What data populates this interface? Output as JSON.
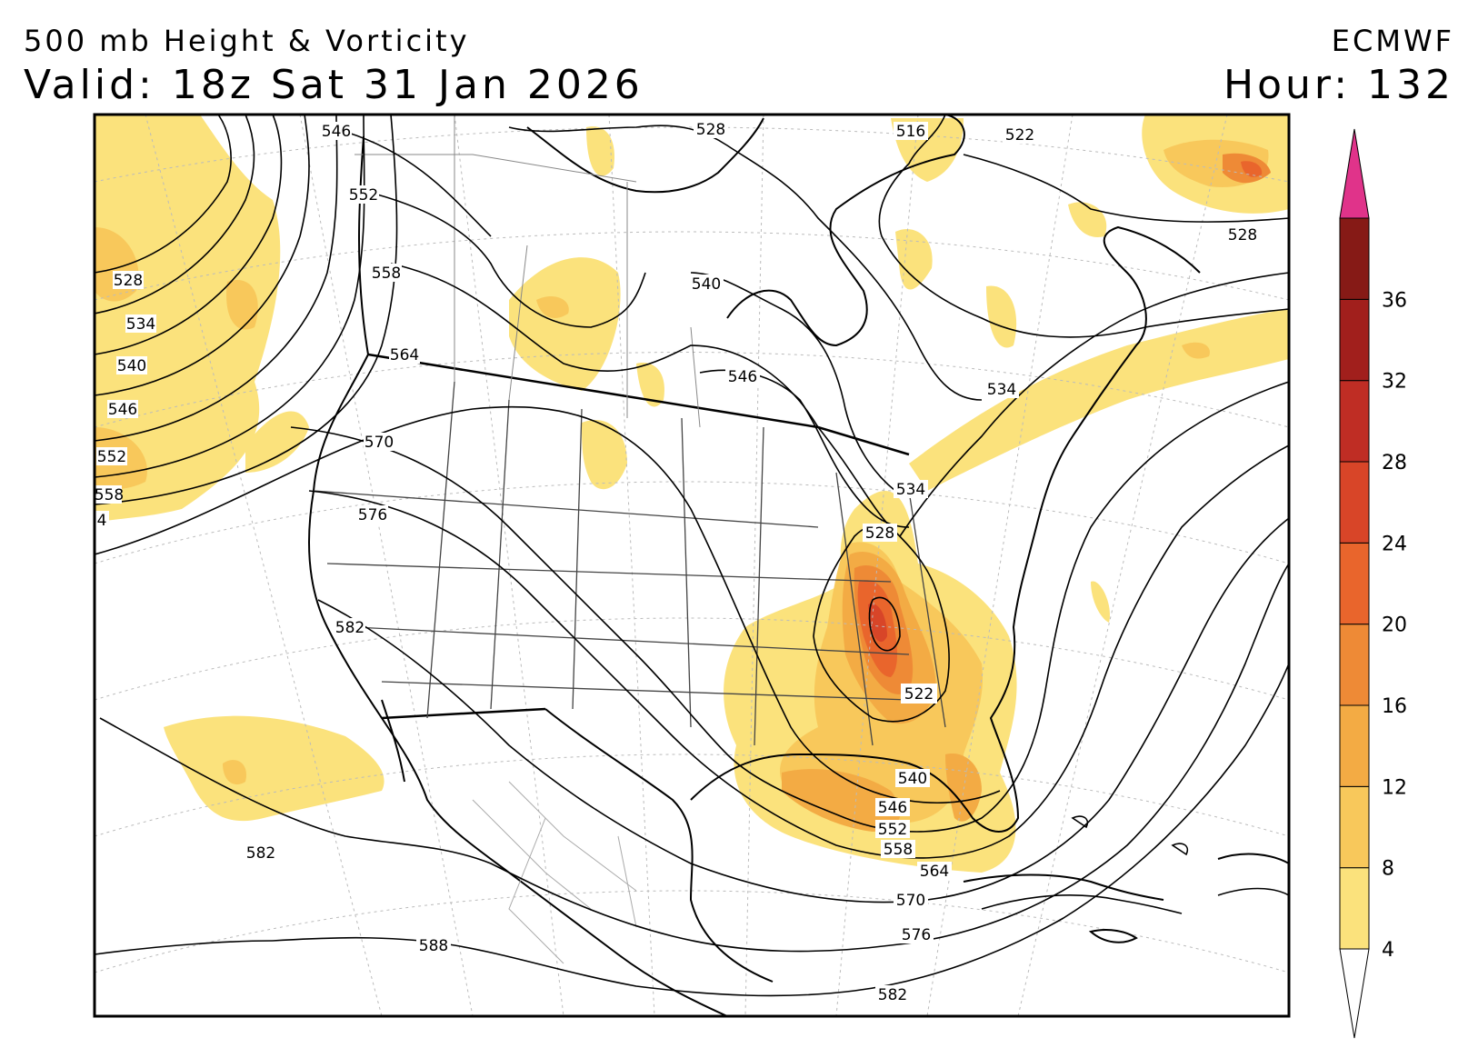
{
  "header": {
    "title": "500 mb Height & Vorticity",
    "valid": "Valid: 18z Sat 31 Jan 2026",
    "model": "ECMWF",
    "hour": "Hour: 132"
  },
  "contour_labels": {
    "h528": "528",
    "h534": "534",
    "h540": "540",
    "h546": "546",
    "h552": "552",
    "h558": "558",
    "h564": "564",
    "h570": "570",
    "h576": "576",
    "h582": "582",
    "h588": "588",
    "h522": "522",
    "h516": "516",
    "edge4": "4"
  },
  "colorbar": {
    "ticks": [
      "4",
      "8",
      "12",
      "16",
      "20",
      "24",
      "28",
      "32",
      "36"
    ],
    "colors": [
      "#fbe27c",
      "#f8c85b",
      "#f3ab44",
      "#ee8a36",
      "#e9652c",
      "#d84528",
      "#bf2d24",
      "#a11f1c",
      "#861a16"
    ],
    "overflow_color": "#e0338a",
    "underflow_color": "#ffffff"
  },
  "map_colors": {
    "land_outline": "#000000",
    "state_lines": "#444444",
    "mexico_lines": "#aaaaaa",
    "height_contours": "#000000"
  }
}
